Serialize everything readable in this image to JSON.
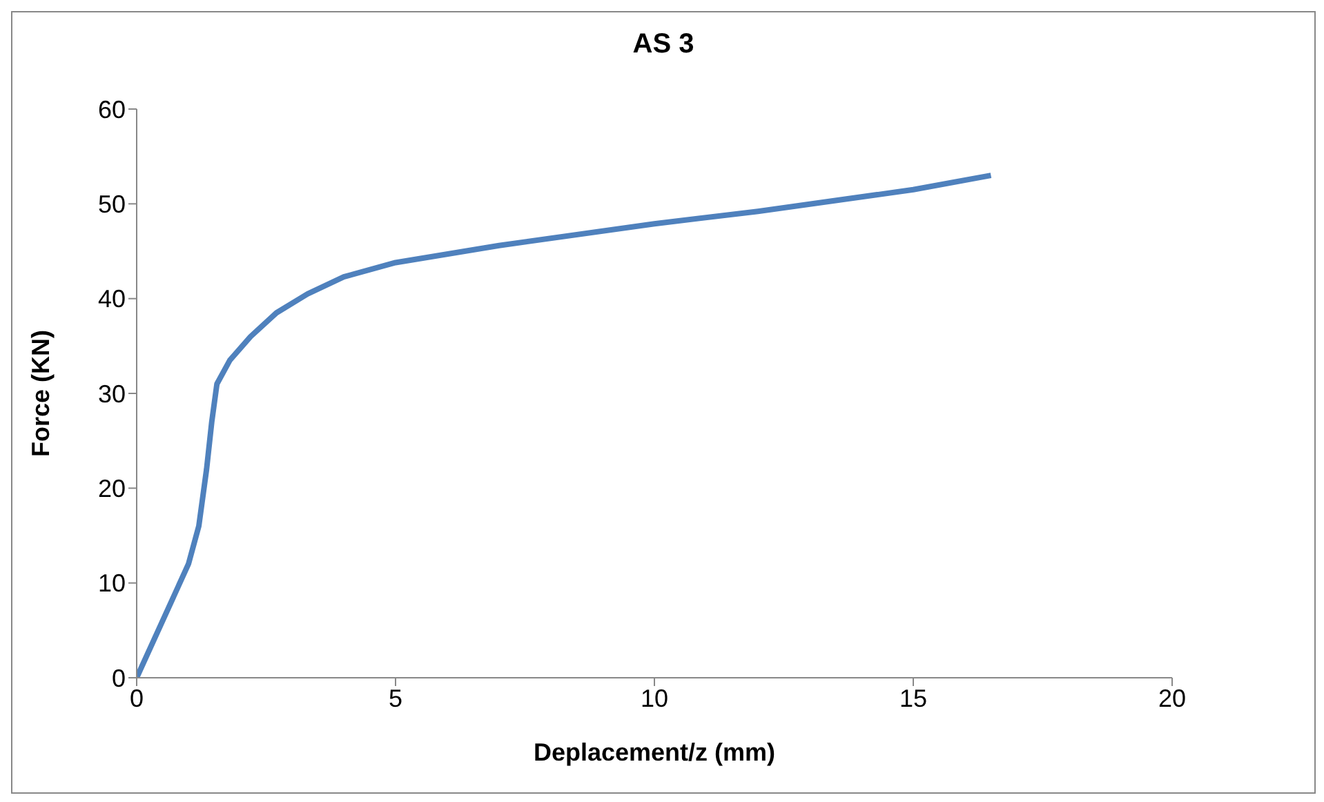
{
  "chart_data": {
    "type": "line",
    "title": "AS 3",
    "xlabel": "Deplacement/z (mm)",
    "ylabel": "Force (KN)",
    "x": [
      0,
      0.5,
      1.0,
      1.2,
      1.35,
      1.45,
      1.55,
      1.8,
      2.2,
      2.7,
      3.3,
      4,
      5,
      7,
      10,
      12,
      15,
      16.5
    ],
    "series": [
      {
        "color": "#4f81bd",
        "values": [
          0,
          6,
          12,
          16,
          22,
          27,
          31,
          33.5,
          36,
          38.5,
          40.5,
          42.3,
          43.8,
          45.6,
          47.9,
          49.2,
          51.5,
          53
        ]
      }
    ],
    "xlim": [
      0,
      20
    ],
    "xticks": [
      0,
      5,
      10,
      15,
      20
    ],
    "ylim": [
      0,
      60
    ],
    "yticks": [
      0,
      10,
      20,
      30,
      40,
      50,
      60
    ],
    "grid": false,
    "marker": "none",
    "line_style": "solid"
  }
}
